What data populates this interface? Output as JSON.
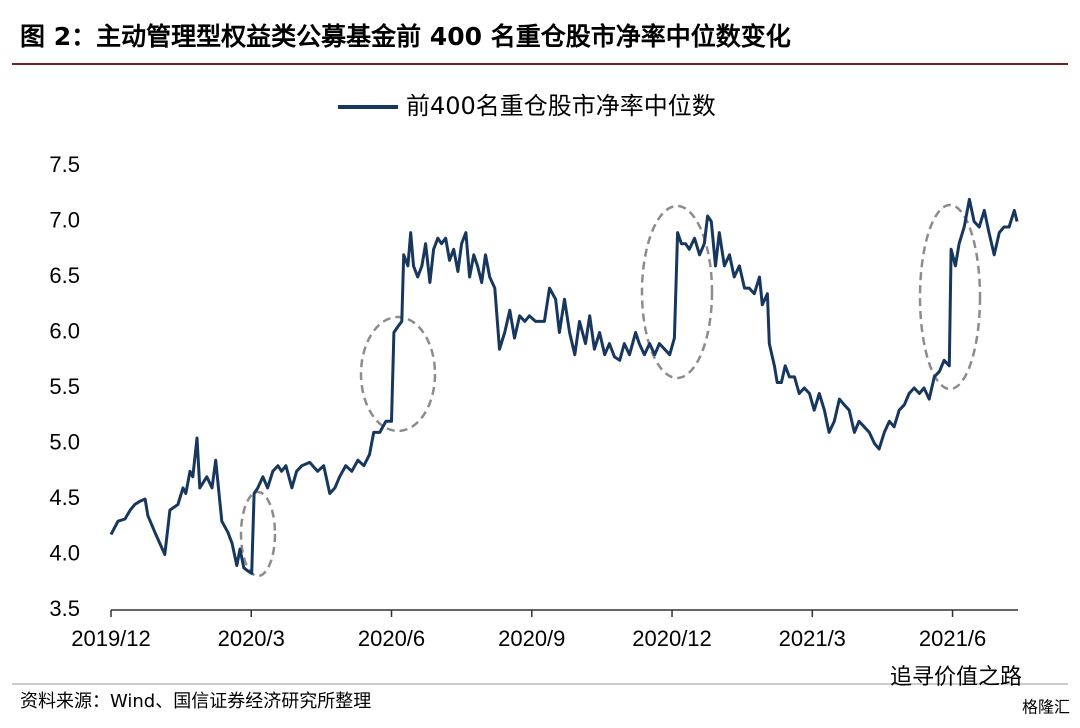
{
  "chart_data": {
    "type": "line",
    "title": "图 2：主动管理型权益类公募基金前 400 名重仓股市净率中位数变化",
    "source": "资料来源：Wind、国信证券经济研究所整理",
    "watermark": "追寻价值之路",
    "watermark2": "格隆汇",
    "legend": "top",
    "xlim": [
      0,
      19.4
    ],
    "xticks": [
      {
        "value": 0,
        "label": "2019/12"
      },
      {
        "value": 3,
        "label": "2020/3"
      },
      {
        "value": 6,
        "label": "2020/6"
      },
      {
        "value": 9,
        "label": "2020/9"
      },
      {
        "value": 12,
        "label": "2020/12"
      },
      {
        "value": 15,
        "label": "2021/3"
      },
      {
        "value": 18,
        "label": "2021/6"
      }
    ],
    "ylim": [
      3.5,
      7.5
    ],
    "yticks": [
      3.5,
      {
        "value": 4,
        "label": "4.0"
      },
      4.5,
      {
        "value": 5,
        "label": "5.0"
      },
      5.5,
      {
        "value": 6,
        "label": "6.0"
      },
      6.5,
      {
        "value": 7,
        "label": "7.0"
      },
      7.5
    ],
    "x": [
      0,
      0.15,
      0.3,
      0.41,
      0.51,
      0.62,
      0.73,
      0.79,
      0.94,
      1.15,
      1.26,
      1.43,
      1.54,
      1.6,
      1.69,
      1.75,
      1.84,
      1.9,
      2.05,
      2.16,
      2.24,
      2.37,
      2.5,
      2.59,
      2.69,
      2.76,
      2.84,
      2.93,
      3.01,
      3.06,
      3.14,
      3.25,
      3.35,
      3.46,
      3.57,
      3.65,
      3.74,
      3.87,
      3.97,
      4.08,
      4.25,
      4.42,
      4.55,
      4.68,
      4.79,
      4.89,
      5.02,
      5.15,
      5.28,
      5.41,
      5.53,
      5.62,
      5.75,
      5.88,
      6.0,
      6.05,
      6.13,
      6.22,
      6.26,
      6.35,
      6.41,
      6.47,
      6.56,
      6.65,
      6.73,
      6.82,
      6.9,
      6.99,
      7.07,
      7.16,
      7.24,
      7.33,
      7.42,
      7.5,
      7.59,
      7.67,
      7.76,
      7.84,
      7.93,
      8.01,
      8.1,
      8.21,
      8.31,
      8.42,
      8.53,
      8.63,
      8.74,
      8.85,
      8.95,
      9.08,
      9.27,
      9.38,
      9.51,
      9.59,
      9.7,
      9.81,
      9.92,
      10.02,
      10.15,
      10.24,
      10.34,
      10.45,
      10.56,
      10.66,
      10.77,
      10.88,
      10.98,
      11.09,
      11.22,
      11.3,
      11.41,
      11.52,
      11.63,
      11.73,
      11.84,
      11.95,
      12.05,
      12.12,
      12.2,
      12.29,
      12.37,
      12.48,
      12.59,
      12.69,
      12.76,
      12.84,
      12.93,
      13.01,
      13.12,
      13.23,
      13.33,
      13.44,
      13.55,
      13.65,
      13.76,
      13.87,
      13.93,
      14.04,
      14.08,
      14.19,
      14.25,
      14.34,
      14.42,
      14.51,
      14.62,
      14.72,
      14.83,
      14.94,
      15.04,
      15.15,
      15.26,
      15.36,
      15.47,
      15.58,
      15.68,
      15.79,
      15.9,
      16.0,
      16.11,
      16.22,
      16.33,
      16.43,
      16.54,
      16.65,
      16.75,
      16.86,
      16.97,
      17.07,
      17.18,
      17.29,
      17.39,
      17.5,
      17.61,
      17.72,
      17.82,
      17.93,
      17.97,
      18.06,
      18.14,
      18.25,
      18.36,
      18.46,
      18.57,
      18.68,
      18.78,
      18.89,
      19.0,
      19.1,
      19.21,
      19.32,
      19.38
    ],
    "series": [
      {
        "name": "前400名重仓股市净率中位数",
        "color": "#17375e",
        "values": [
          4.18,
          4.3,
          4.32,
          4.4,
          4.45,
          4.48,
          4.5,
          4.35,
          4.2,
          4.0,
          4.4,
          4.45,
          4.6,
          4.55,
          4.75,
          4.7,
          5.05,
          4.6,
          4.7,
          4.6,
          4.85,
          4.3,
          4.2,
          4.1,
          3.9,
          4.05,
          3.88,
          3.85,
          3.83,
          4.55,
          4.6,
          4.7,
          4.6,
          4.75,
          4.8,
          4.75,
          4.8,
          4.6,
          4.75,
          4.8,
          4.83,
          4.75,
          4.8,
          4.55,
          4.6,
          4.7,
          4.8,
          4.75,
          4.85,
          4.8,
          4.9,
          5.1,
          5.1,
          5.2,
          5.2,
          6.0,
          6.05,
          6.1,
          6.7,
          6.6,
          6.9,
          6.6,
          6.5,
          6.6,
          6.8,
          6.45,
          6.75,
          6.85,
          6.8,
          6.85,
          6.65,
          6.75,
          6.55,
          6.8,
          6.9,
          6.5,
          6.7,
          6.6,
          6.45,
          6.7,
          6.5,
          6.4,
          5.85,
          6.0,
          6.2,
          5.95,
          6.15,
          6.1,
          6.15,
          6.1,
          6.1,
          6.4,
          6.3,
          6.0,
          6.3,
          6.0,
          5.8,
          6.1,
          5.9,
          6.15,
          5.85,
          6.0,
          5.8,
          5.9,
          5.78,
          5.75,
          5.9,
          5.8,
          6.0,
          5.9,
          5.8,
          5.9,
          5.8,
          5.9,
          5.85,
          5.8,
          5.95,
          6.9,
          6.8,
          6.8,
          6.75,
          6.85,
          6.7,
          6.8,
          7.05,
          7.0,
          6.6,
          6.9,
          6.6,
          6.7,
          6.5,
          6.6,
          6.4,
          6.4,
          6.35,
          6.5,
          6.25,
          6.35,
          5.9,
          5.7,
          5.55,
          5.55,
          5.7,
          5.6,
          5.6,
          5.45,
          5.5,
          5.45,
          5.3,
          5.45,
          5.3,
          5.1,
          5.2,
          5.4,
          5.35,
          5.3,
          5.1,
          5.2,
          5.15,
          5.1,
          5.0,
          4.95,
          5.1,
          5.2,
          5.15,
          5.3,
          5.35,
          5.45,
          5.5,
          5.45,
          5.5,
          5.4,
          5.6,
          5.65,
          5.75,
          5.7,
          6.75,
          6.6,
          6.8,
          6.95,
          7.2,
          7.0,
          6.95,
          7.1,
          6.9,
          6.7,
          6.9,
          6.95,
          6.95,
          7.1,
          7.0
        ]
      }
    ]
  }
}
